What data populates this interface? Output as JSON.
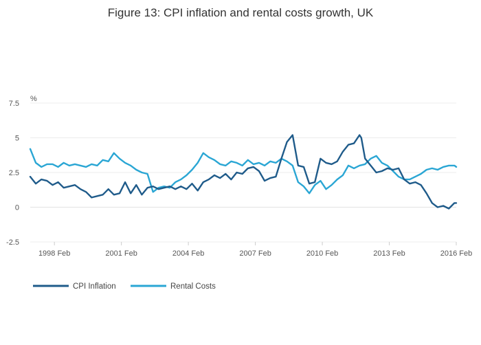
{
  "chart_data": {
    "type": "line",
    "title": "Figure 13: CPI inflation and rental costs growth, UK",
    "ylabel": "%",
    "xlabel": "",
    "ylim": [
      -2.5,
      7.5
    ],
    "xlim": [
      1997.0,
      2016.083
    ],
    "y_ticks": [
      {
        "value": 7.5,
        "label": "7.5"
      },
      {
        "value": 5,
        "label": "5"
      },
      {
        "value": 2.5,
        "label": "2.5"
      },
      {
        "value": 0,
        "label": "0"
      },
      {
        "value": -2.5,
        "label": "-2.5"
      }
    ],
    "x_ticks": [
      {
        "value": 1998.083,
        "label": "1998 Feb"
      },
      {
        "value": 2001.083,
        "label": "2001 Feb"
      },
      {
        "value": 2004.083,
        "label": "2004 Feb"
      },
      {
        "value": 2007.083,
        "label": "2007 Feb"
      },
      {
        "value": 2010.083,
        "label": "2010 Feb"
      },
      {
        "value": 2013.083,
        "label": "2013 Feb"
      },
      {
        "value": 2016.083,
        "label": "2016 Feb"
      }
    ],
    "grid": true,
    "legend_position": "bottom-left",
    "series": [
      {
        "name": "CPI Inflation",
        "color": "#1f5b8a",
        "x": [
          1997.0,
          1997.25,
          1997.5,
          1997.75,
          1998.0,
          1998.25,
          1998.5,
          1998.75,
          1999.0,
          1999.25,
          1999.5,
          1999.75,
          2000.0,
          2000.25,
          2000.5,
          2000.75,
          2001.0,
          2001.25,
          2001.5,
          2001.75,
          2002.0,
          2002.25,
          2002.5,
          2002.75,
          2003.0,
          2003.25,
          2003.5,
          2003.75,
          2004.0,
          2004.25,
          2004.5,
          2004.75,
          2005.0,
          2005.25,
          2005.5,
          2005.75,
          2006.0,
          2006.25,
          2006.5,
          2006.75,
          2007.0,
          2007.25,
          2007.5,
          2007.75,
          2008.0,
          2008.25,
          2008.5,
          2008.75,
          2008.83,
          2009.0,
          2009.25,
          2009.5,
          2009.75,
          2010.0,
          2010.25,
          2010.5,
          2010.75,
          2011.0,
          2011.25,
          2011.5,
          2011.75,
          2011.83,
          2012.0,
          2012.25,
          2012.5,
          2012.75,
          2013.0,
          2013.25,
          2013.5,
          2013.75,
          2014.0,
          2014.25,
          2014.5,
          2014.75,
          2015.0,
          2015.25,
          2015.5,
          2015.75,
          2016.0,
          2016.083
        ],
        "values": [
          2.2,
          1.7,
          2.0,
          1.9,
          1.6,
          1.8,
          1.4,
          1.5,
          1.6,
          1.3,
          1.1,
          0.7,
          0.8,
          0.9,
          1.3,
          0.9,
          1.0,
          1.8,
          1.0,
          1.6,
          0.9,
          1.4,
          1.5,
          1.3,
          1.4,
          1.5,
          1.3,
          1.5,
          1.3,
          1.7,
          1.2,
          1.8,
          2.0,
          2.3,
          2.1,
          2.4,
          2.0,
          2.5,
          2.4,
          2.8,
          2.9,
          2.6,
          1.9,
          2.1,
          2.2,
          3.5,
          4.7,
          5.2,
          4.5,
          3.0,
          2.9,
          1.7,
          1.8,
          3.5,
          3.2,
          3.1,
          3.3,
          4.0,
          4.5,
          4.6,
          5.2,
          5.0,
          3.5,
          3.0,
          2.5,
          2.6,
          2.8,
          2.7,
          2.8,
          2.0,
          1.7,
          1.8,
          1.6,
          1.0,
          0.3,
          0.0,
          0.1,
          -0.1,
          0.3,
          0.3
        ]
      },
      {
        "name": "Rental Costs",
        "color": "#2aa6d4",
        "x": [
          1997.0,
          1997.25,
          1997.5,
          1997.75,
          1998.0,
          1998.25,
          1998.5,
          1998.75,
          1999.0,
          1999.25,
          1999.5,
          1999.75,
          2000.0,
          2000.25,
          2000.5,
          2000.75,
          2001.0,
          2001.25,
          2001.5,
          2001.75,
          2002.0,
          2002.25,
          2002.5,
          2002.75,
          2003.0,
          2003.25,
          2003.5,
          2003.75,
          2004.0,
          2004.25,
          2004.5,
          2004.75,
          2005.0,
          2005.25,
          2005.5,
          2005.75,
          2006.0,
          2006.25,
          2006.5,
          2006.75,
          2007.0,
          2007.25,
          2007.5,
          2007.75,
          2008.0,
          2008.25,
          2008.5,
          2008.75,
          2009.0,
          2009.25,
          2009.5,
          2009.75,
          2010.0,
          2010.25,
          2010.5,
          2010.75,
          2011.0,
          2011.25,
          2011.5,
          2011.75,
          2012.0,
          2012.25,
          2012.5,
          2012.75,
          2013.0,
          2013.25,
          2013.5,
          2013.75,
          2014.0,
          2014.25,
          2014.5,
          2014.75,
          2015.0,
          2015.25,
          2015.5,
          2015.75,
          2016.0,
          2016.083
        ],
        "values": [
          4.2,
          3.2,
          2.9,
          3.1,
          3.1,
          2.9,
          3.2,
          3.0,
          3.1,
          3.0,
          2.9,
          3.1,
          3.0,
          3.4,
          3.3,
          3.9,
          3.5,
          3.2,
          3.0,
          2.7,
          2.5,
          2.4,
          1.1,
          1.4,
          1.5,
          1.4,
          1.8,
          2.0,
          2.3,
          2.7,
          3.2,
          3.9,
          3.6,
          3.4,
          3.1,
          3.0,
          3.3,
          3.2,
          3.0,
          3.4,
          3.1,
          3.2,
          3.0,
          3.3,
          3.2,
          3.5,
          3.3,
          3.0,
          1.8,
          1.5,
          1.0,
          1.6,
          1.9,
          1.3,
          1.6,
          2.0,
          2.3,
          3.0,
          2.8,
          3.0,
          3.1,
          3.5,
          3.7,
          3.2,
          3.0,
          2.6,
          2.2,
          2.0,
          2.0,
          2.2,
          2.4,
          2.7,
          2.8,
          2.7,
          2.9,
          3.0,
          3.0,
          2.9
        ]
      }
    ]
  }
}
